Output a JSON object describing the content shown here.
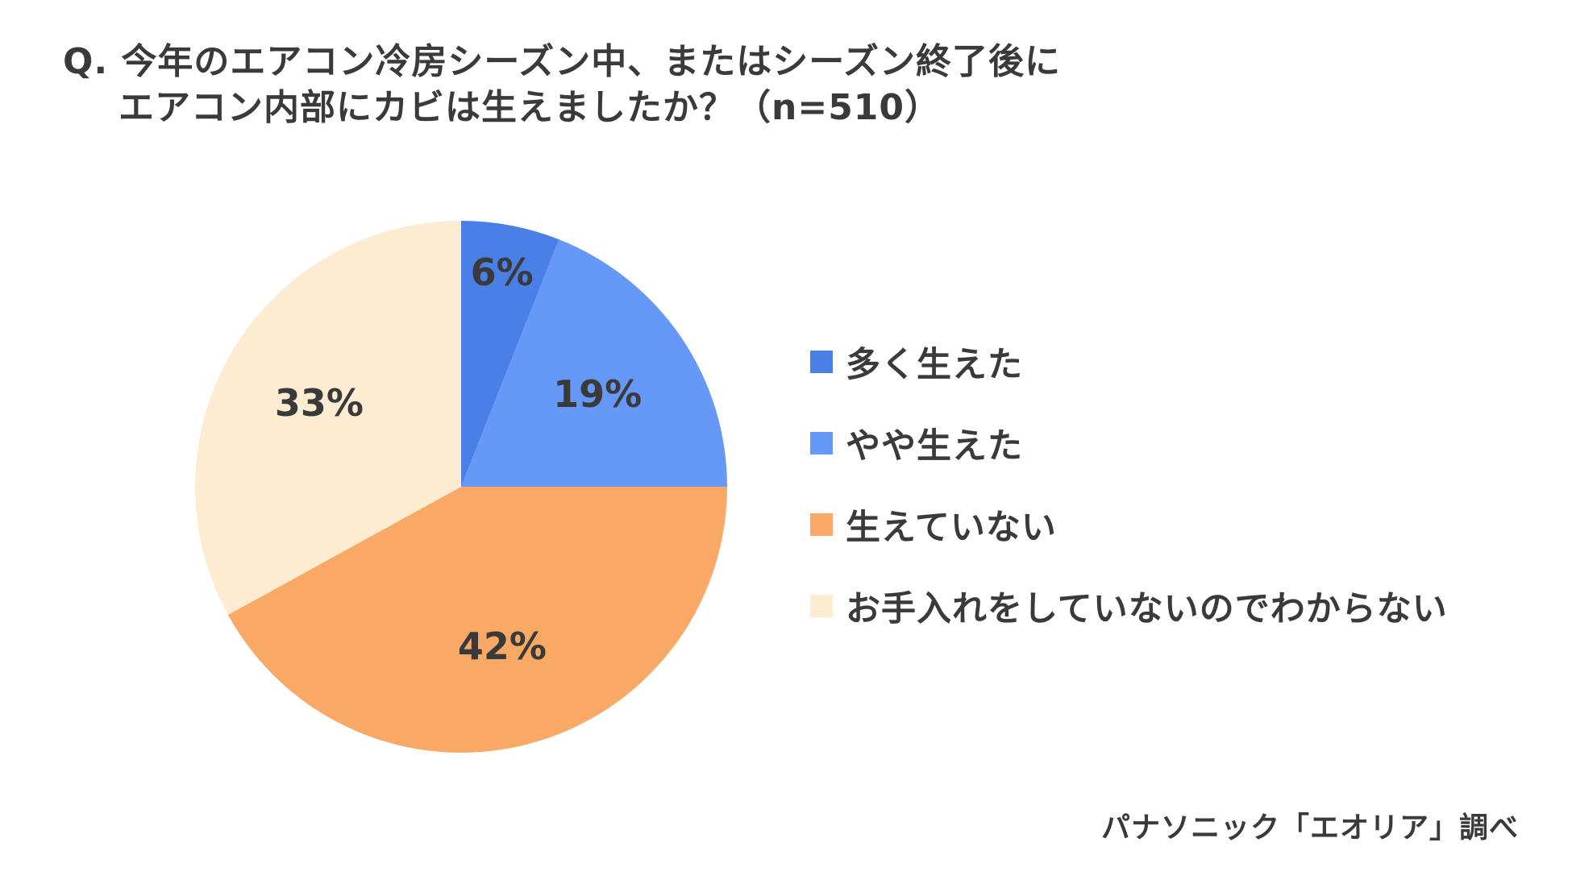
{
  "title": {
    "line1": "Q. 今年のエアコン冷房シーズン中、またはシーズン終了後に",
    "line2": "エアコン内部にカビは生えましたか？（n=510）"
  },
  "source": "パナソニック「エオリア」調べ",
  "chart_data": {
    "type": "pie",
    "start_angle_deg": 0,
    "direction": "clockwise",
    "slices": [
      {
        "label": "多く生えた",
        "value": 6,
        "value_label": "6%",
        "color": "#4a7fe8"
      },
      {
        "label": "やや生えた",
        "value": 19,
        "value_label": "19%",
        "color": "#6699f7"
      },
      {
        "label": "生えていない",
        "value": 42,
        "value_label": "42%",
        "color": "#f9a866"
      },
      {
        "label": "お手入れをしていないのでわからない",
        "value": 33,
        "value_label": "33%",
        "color": "#fdecd1"
      }
    ],
    "legend_position": "right"
  }
}
